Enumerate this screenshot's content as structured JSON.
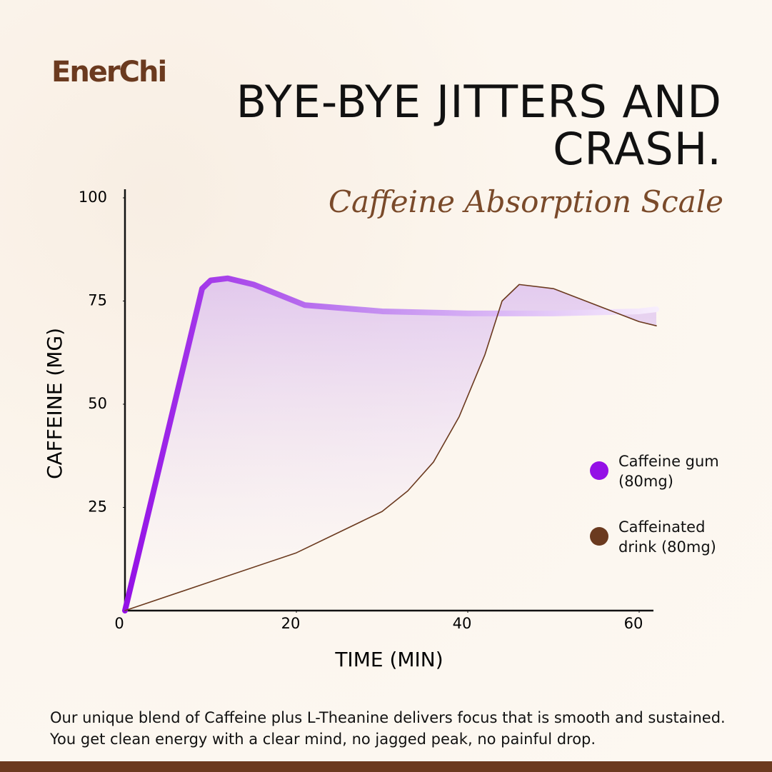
{
  "brand": "EnerChi",
  "chart_data": {
    "type": "line",
    "title": "BYE-BYE JITTERS AND CRASH.",
    "subtitle": "Caffeine Absorption Scale",
    "x_label": "TIME (MIN)",
    "y_label": "CAFFEINE (MG)",
    "xlim": [
      0,
      62
    ],
    "xticks": [
      0,
      20,
      40,
      60
    ],
    "ylim": [
      0,
      100
    ],
    "yticks": [
      25,
      50,
      75,
      100
    ],
    "legend": "right",
    "series": [
      {
        "name": "Caffeine gum (80mg)",
        "color": "#9410e6",
        "x": [
          0,
          9,
          10,
          12,
          15,
          18,
          21,
          30,
          40,
          50,
          60,
          62
        ],
        "values": [
          0,
          78,
          80,
          80.5,
          79,
          76.5,
          74,
          72.5,
          72,
          72,
          72.5,
          73
        ]
      },
      {
        "name": "Caffeinated drink (80mg)",
        "color": "#6b3a1f",
        "x": [
          0,
          10,
          20,
          30,
          33,
          36,
          39,
          42,
          44,
          46,
          50,
          55,
          60,
          62
        ],
        "values": [
          0,
          7,
          14,
          24,
          29,
          36,
          47,
          62,
          75,
          79,
          78,
          74,
          70,
          69
        ]
      }
    ]
  },
  "footer_text": "Our unique blend of Caffeine plus L-Theanine delivers focus that is smooth and sustained. You get clean energy with a clear mind, no jagged peak, no painful drop."
}
